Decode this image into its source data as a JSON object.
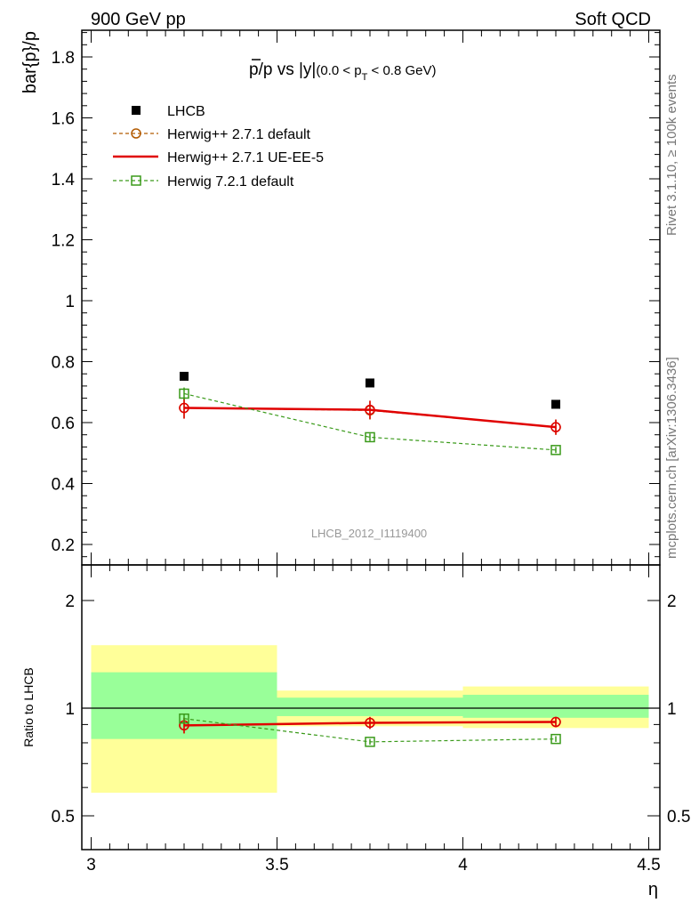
{
  "header": {
    "left": "900 GeV pp",
    "right": "Soft QCD"
  },
  "side_labels": {
    "rivet": "Rivet 3.1.10, ≥ 100k events",
    "mcplots": "mcplots.cern.ch [arXiv:1306.3436]"
  },
  "watermark": "LHCB_2012_I1119400",
  "colors": {
    "data": "#000000",
    "herwigpp_default": "#b25a00",
    "herwigpp_ueee5": "#e00000",
    "herwig7": "#3a9a1a",
    "band_inner": "#99ff99",
    "band_outer": "#ffff99"
  },
  "chart_data": [
    {
      "type": "scatter",
      "title": "p̅/p vs |y|",
      "title_main": "p/p vs |y|",
      "title_sub": "(0.0 < p",
      "title_sub_idx": "T",
      "title_sub_end": " < 0.8 GeV)",
      "ylabel": "bar{p}/p",
      "xlabel": "",
      "ylim": [
        0.15,
        1.9
      ],
      "xlim": [
        3.0,
        4.5
      ],
      "yticks": [
        0.2,
        0.4,
        0.6,
        0.8,
        1,
        1.2,
        1.4,
        1.6,
        1.8
      ],
      "ytick_labels": [
        "0.2",
        "0.4",
        "0.6",
        "0.8",
        "1",
        "1.2",
        "1.4",
        "1.6",
        "1.8"
      ],
      "legend_position": "top-left",
      "series": [
        {
          "name": "LHCB",
          "style": "data",
          "x": [
            3.25,
            3.75,
            4.25
          ],
          "y": [
            0.752,
            0.73,
            0.66
          ]
        },
        {
          "name": "Herwig++ 2.7.1 default",
          "style": "circle-dashed",
          "x": [
            3.25,
            3.75,
            4.25
          ],
          "y": [
            0.648,
            0.64,
            0.585
          ],
          "err": [
            0.035,
            0.03,
            0.025
          ]
        },
        {
          "name": "Herwig++ 2.7.1 UE-EE-5",
          "style": "solid",
          "x": [
            3.25,
            3.75,
            4.25
          ],
          "y": [
            0.648,
            0.642,
            0.585
          ],
          "err": [
            0.035,
            0.03,
            0.025
          ]
        },
        {
          "name": "Herwig 7.2.1 default",
          "style": "square-dashed",
          "x": [
            3.25,
            3.75,
            4.25
          ],
          "y": [
            0.695,
            0.552,
            0.51
          ],
          "err": [
            0.02,
            0.012,
            0.01
          ]
        }
      ]
    },
    {
      "type": "scatter",
      "ylabel": "Ratio to LHCB",
      "xlabel": "η",
      "log_y": true,
      "ylim": [
        0.4,
        2.5
      ],
      "xlim": [
        3.0,
        4.5
      ],
      "yticks": [
        0.5,
        1,
        2
      ],
      "ytick_labels": [
        "0.5",
        "1",
        "2"
      ],
      "xticks": [
        3,
        3.5,
        4,
        4.5
      ],
      "xtick_labels": [
        "3",
        "3.5",
        "4",
        "4.5"
      ],
      "bands": [
        {
          "x": [
            3.0,
            3.5
          ],
          "inner": [
            0.82,
            1.26
          ],
          "outer": [
            0.58,
            1.5
          ]
        },
        {
          "x": [
            3.5,
            4.0
          ],
          "inner": [
            0.95,
            1.07
          ],
          "outer": [
            0.89,
            1.12
          ]
        },
        {
          "x": [
            4.0,
            4.5
          ],
          "inner": [
            0.94,
            1.09
          ],
          "outer": [
            0.88,
            1.15
          ]
        }
      ],
      "series": [
        {
          "name": "Herwig++ 2.7.1 default",
          "style": "circle-dashed",
          "x": [
            3.25,
            3.75,
            4.25
          ],
          "y": [
            0.895,
            0.91,
            0.915
          ],
          "err": [
            0.045,
            0.035,
            0.03
          ]
        },
        {
          "name": "Herwig++ 2.7.1 UE-EE-5",
          "style": "solid",
          "x": [
            3.25,
            3.75,
            4.25
          ],
          "y": [
            0.895,
            0.91,
            0.915
          ],
          "err": [
            0.045,
            0.035,
            0.03
          ]
        },
        {
          "name": "Herwig 7.2.1 default",
          "style": "square-dashed",
          "x": [
            3.25,
            3.75,
            4.25
          ],
          "y": [
            0.935,
            0.805,
            0.82
          ],
          "err": [
            0.03,
            0.015,
            0.015
          ]
        }
      ]
    }
  ]
}
